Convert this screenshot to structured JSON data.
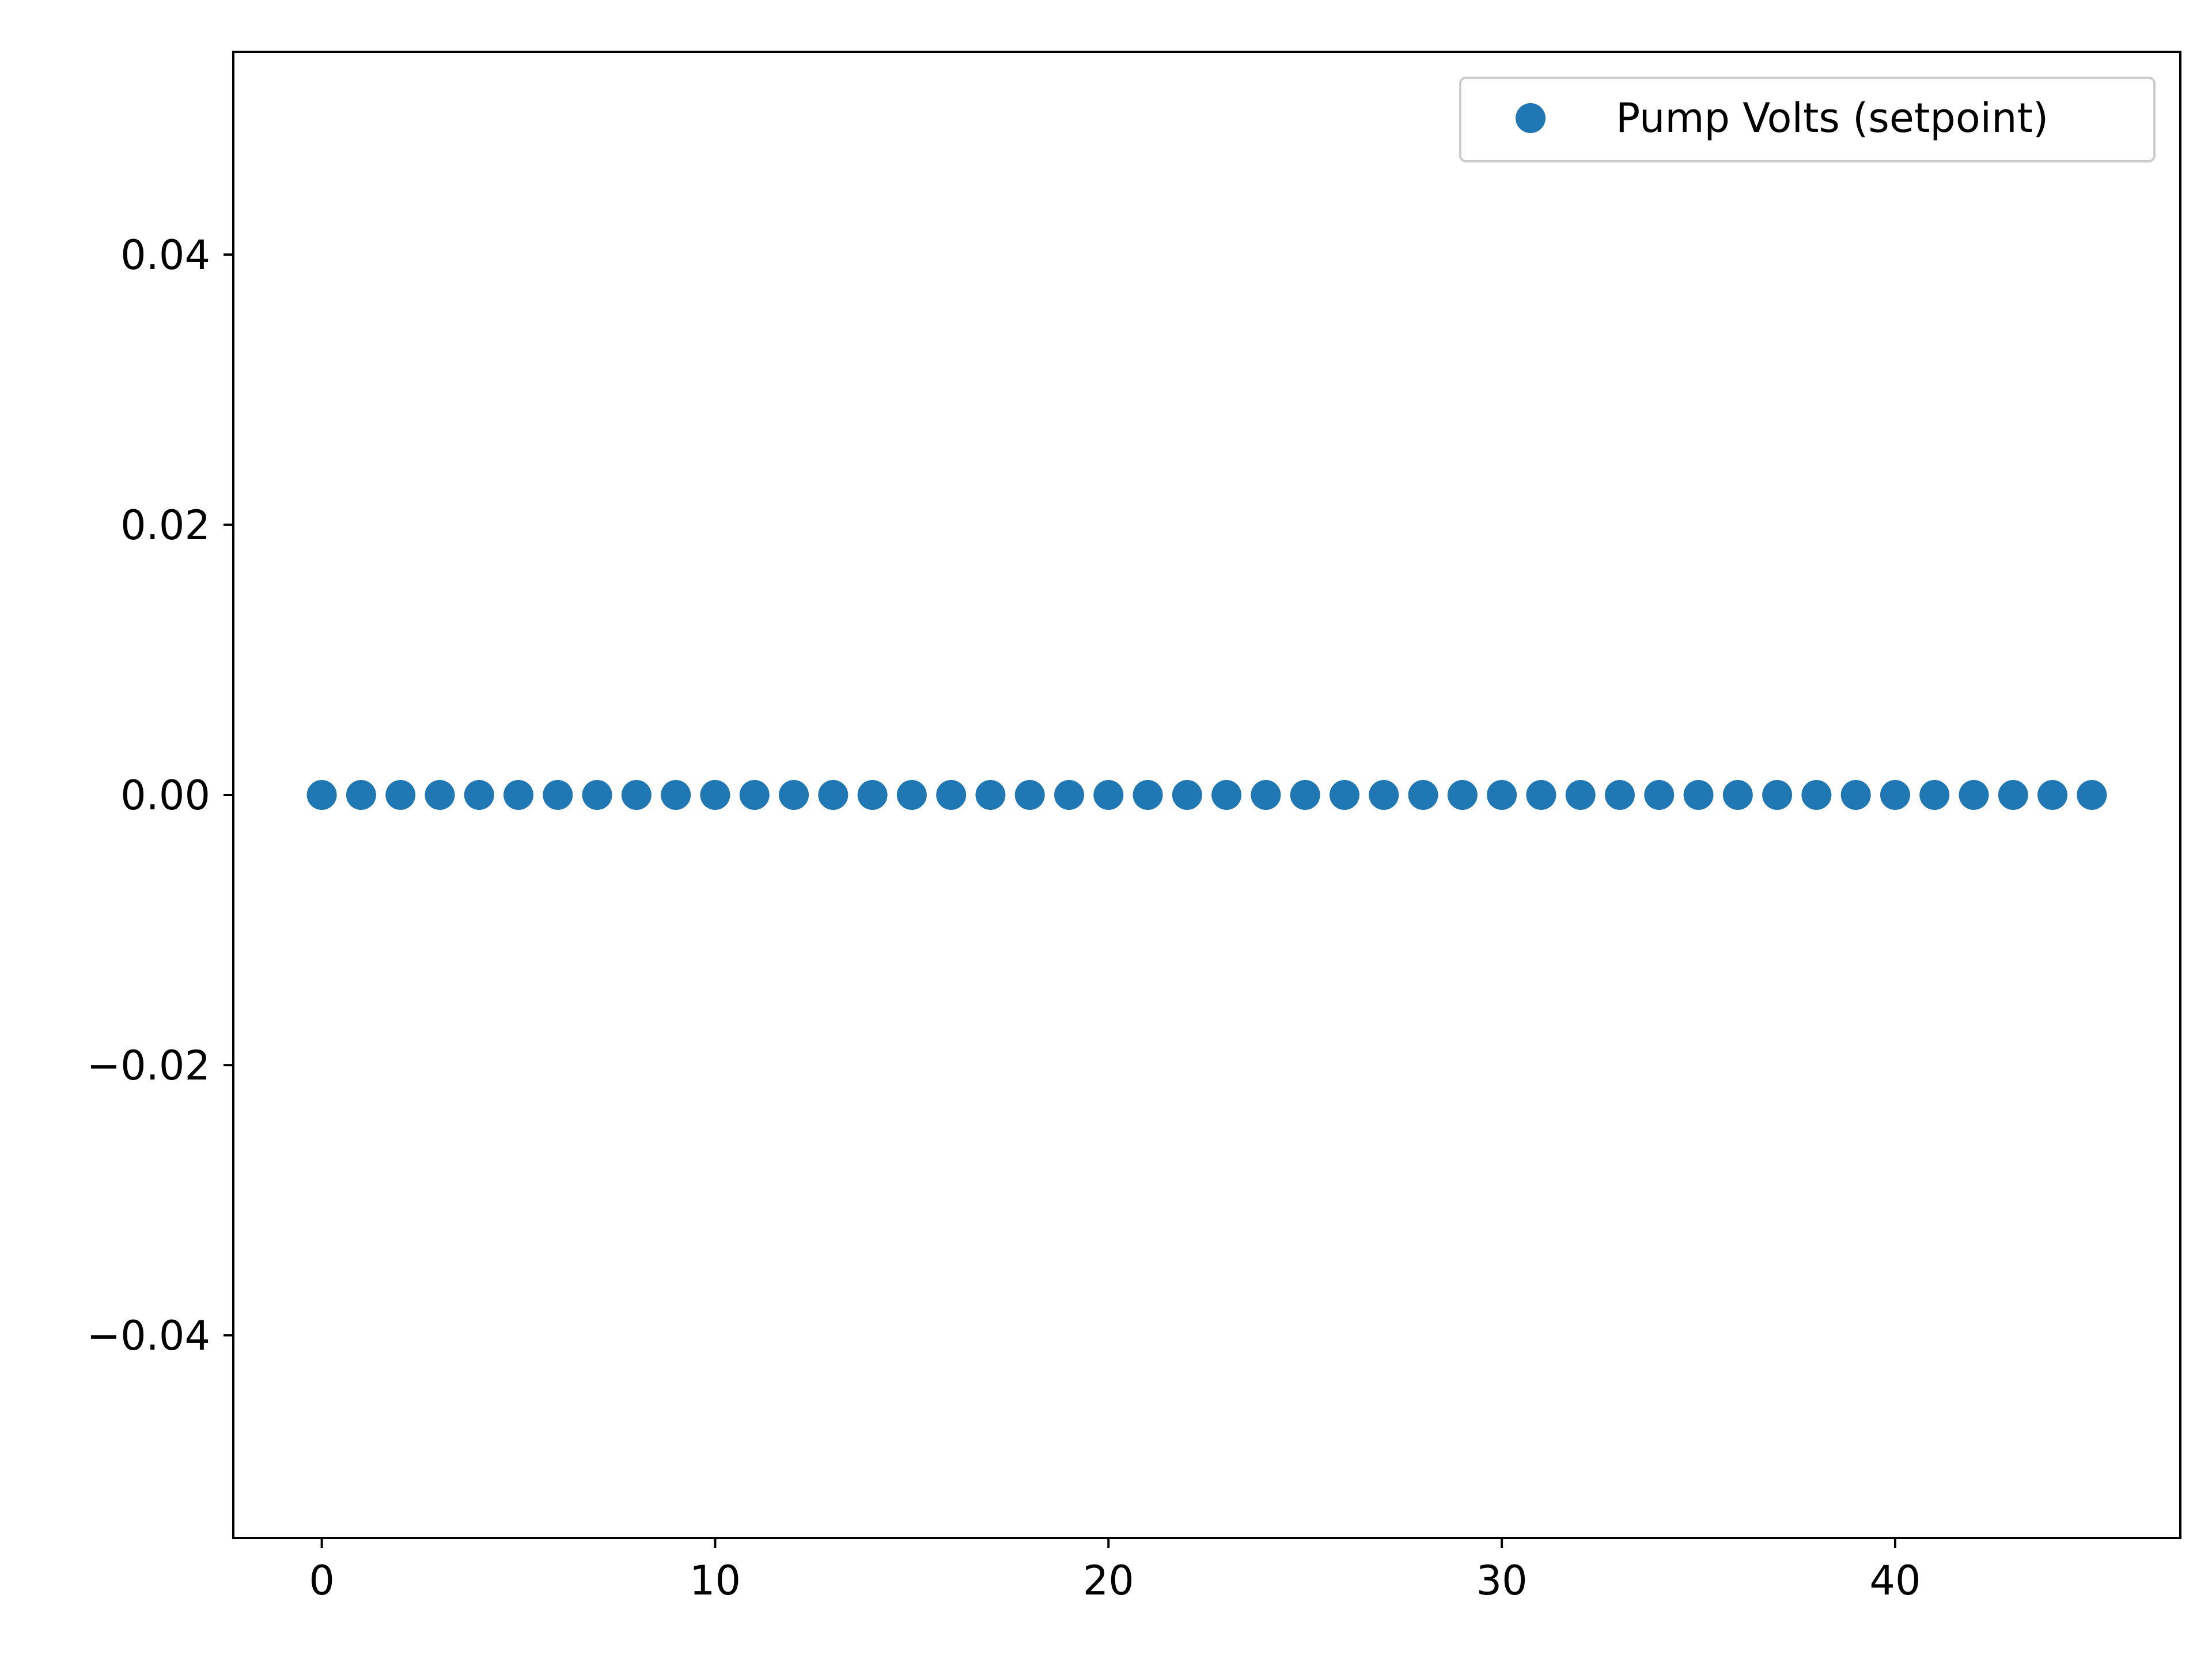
{
  "chart_data": {
    "type": "scatter",
    "title": "",
    "xlabel": "",
    "ylabel": "",
    "xlim": [
      -2.25,
      47.25
    ],
    "ylim": [
      -0.055,
      0.055
    ],
    "x_ticks": [
      0,
      10,
      20,
      30,
      40
    ],
    "x_tick_labels": [
      "0",
      "10",
      "20",
      "30",
      "40"
    ],
    "y_ticks": [
      -0.04,
      -0.02,
      0.0,
      0.02,
      0.04
    ],
    "y_tick_labels": [
      "−0.04",
      "−0.02",
      "0.00",
      "0.02",
      "0.04"
    ],
    "grid": false,
    "legend_position": "top-right",
    "series": [
      {
        "name": "Pump Volts (setpoint)",
        "color": "#1f77b4",
        "marker": "circle",
        "x": [
          0,
          1,
          2,
          3,
          4,
          5,
          6,
          7,
          8,
          9,
          10,
          11,
          12,
          13,
          14,
          15,
          16,
          17,
          18,
          19,
          20,
          21,
          22,
          23,
          24,
          25,
          26,
          27,
          28,
          29,
          30,
          31,
          32,
          33,
          34,
          35,
          36,
          37,
          38,
          39,
          40,
          41,
          42,
          43,
          44,
          45
        ],
        "y": [
          0,
          0,
          0,
          0,
          0,
          0,
          0,
          0,
          0,
          0,
          0,
          0,
          0,
          0,
          0,
          0,
          0,
          0,
          0,
          0,
          0,
          0,
          0,
          0,
          0,
          0,
          0,
          0,
          0,
          0,
          0,
          0,
          0,
          0,
          0,
          0,
          0,
          0,
          0,
          0,
          0,
          0,
          0,
          0,
          0,
          0
        ]
      }
    ]
  }
}
